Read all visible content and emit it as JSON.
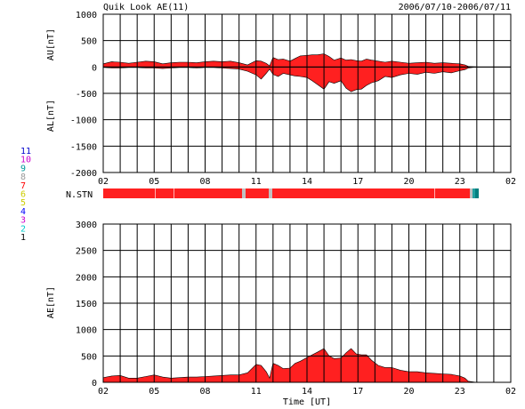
{
  "header": {
    "title": "Quik Look AE(11)",
    "date_range": "2006/07/10-2006/07/11"
  },
  "colors": {
    "fill": "#ff2020",
    "grid": "#000000",
    "legend": [
      "#0000cc",
      "#cc00cc",
      "#009999",
      "#999999",
      "#ff0000",
      "#cccc00",
      "#cccc00",
      "#0000ff",
      "#cc00cc",
      "#00cccc"
    ]
  },
  "chart_data": [
    {
      "type": "area",
      "name": "AU/AL",
      "ylabel_upper": "AU[nT]",
      "ylabel_lower": "AL[nT]",
      "ylim": [
        -2000,
        1000
      ],
      "yticks": [
        1000,
        500,
        0,
        -500,
        -1000,
        -1500,
        -2000
      ],
      "ytick_labels": [
        "1000",
        "500",
        "0",
        "-500",
        "-1000",
        "-1500",
        "-2000"
      ],
      "xlim": [
        2,
        26
      ],
      "xtick_labels": [
        "02",
        "05",
        "08",
        "11",
        "14",
        "17",
        "20",
        "23",
        "02"
      ],
      "x": [
        2.0,
        2.5,
        3.0,
        3.5,
        4.0,
        4.5,
        5.0,
        5.5,
        6.0,
        6.5,
        7.0,
        7.5,
        8.0,
        8.5,
        9.0,
        9.5,
        10.0,
        10.5,
        11.0,
        11.3,
        11.6,
        11.8,
        12.0,
        12.3,
        12.6,
        13.0,
        13.3,
        13.6,
        14.0,
        14.3,
        14.6,
        15.0,
        15.3,
        15.6,
        16.0,
        16.3,
        16.6,
        16.9,
        17.2,
        17.5,
        17.8,
        18.2,
        18.6,
        19.0,
        19.5,
        20.0,
        20.5,
        21.0,
        21.5,
        22.0,
        22.5,
        23.0,
        23.3,
        23.5,
        24.0
      ],
      "au": [
        60,
        100,
        90,
        70,
        90,
        110,
        100,
        60,
        80,
        90,
        90,
        80,
        100,
        110,
        100,
        110,
        80,
        40,
        120,
        110,
        70,
        20,
        180,
        140,
        150,
        110,
        160,
        210,
        220,
        230,
        230,
        250,
        200,
        130,
        170,
        130,
        140,
        120,
        110,
        150,
        130,
        110,
        90,
        110,
        90,
        70,
        80,
        90,
        70,
        80,
        70,
        60,
        40,
        10,
        0
      ],
      "al": [
        -10,
        -20,
        -20,
        -10,
        -10,
        -20,
        -20,
        -30,
        -20,
        -10,
        -10,
        -20,
        -10,
        -10,
        -20,
        -30,
        -40,
        -80,
        -150,
        -230,
        -120,
        -40,
        -140,
        -180,
        -120,
        -150,
        -170,
        -180,
        -200,
        -260,
        -330,
        -420,
        -280,
        -310,
        -260,
        -400,
        -470,
        -430,
        -420,
        -350,
        -300,
        -260,
        -180,
        -200,
        -150,
        -120,
        -140,
        -100,
        -120,
        -90,
        -110,
        -70,
        -50,
        -20,
        0
      ],
      "station_bar_label": "N.STN",
      "legend_numbers": [
        "11",
        "10",
        "9",
        "8",
        "7",
        "6",
        "5",
        "4",
        "3",
        "2",
        "1"
      ]
    },
    {
      "type": "area",
      "name": "AE",
      "ylabel": "AE[nT]",
      "xlabel": "Time [UT]",
      "ylim": [
        0,
        3000
      ],
      "yticks": [
        3000,
        2500,
        2000,
        1500,
        1000,
        500,
        0
      ],
      "ytick_labels": [
        "3000",
        "2500",
        "2000",
        "1500",
        "1000",
        "500",
        "0"
      ],
      "xlim": [
        2,
        26
      ],
      "xtick_labels": [
        "02",
        "05",
        "08",
        "11",
        "14",
        "17",
        "20",
        "23",
        "02"
      ],
      "x": [
        2.0,
        2.5,
        3.0,
        3.5,
        4.0,
        4.5,
        5.0,
        5.5,
        6.0,
        6.5,
        7.0,
        7.5,
        8.0,
        8.5,
        9.0,
        9.5,
        10.0,
        10.5,
        11.0,
        11.3,
        11.6,
        11.8,
        12.0,
        12.3,
        12.6,
        13.0,
        13.3,
        13.6,
        14.0,
        14.3,
        14.6,
        15.0,
        15.3,
        15.6,
        16.0,
        16.3,
        16.6,
        16.9,
        17.2,
        17.5,
        17.8,
        18.2,
        18.6,
        19.0,
        19.5,
        20.0,
        20.5,
        21.0,
        21.5,
        22.0,
        22.5,
        23.0,
        23.3,
        23.5,
        24.0
      ],
      "ae": [
        90,
        120,
        130,
        80,
        80,
        110,
        140,
        100,
        80,
        90,
        100,
        100,
        110,
        120,
        130,
        140,
        140,
        180,
        340,
        320,
        200,
        80,
        360,
        320,
        260,
        270,
        360,
        400,
        470,
        520,
        570,
        640,
        500,
        450,
        460,
        560,
        640,
        540,
        520,
        520,
        420,
        320,
        280,
        280,
        230,
        200,
        200,
        180,
        170,
        160,
        150,
        120,
        80,
        20,
        0
      ]
    }
  ]
}
